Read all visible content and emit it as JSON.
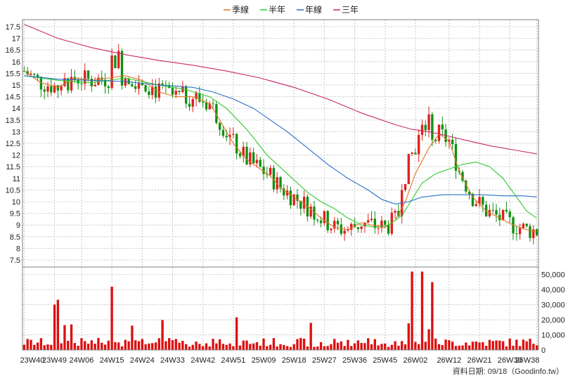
{
  "legend": [
    {
      "label": "季線",
      "color": "#e07828"
    },
    {
      "label": "半年",
      "color": "#2ecc2e"
    },
    {
      "label": "年線",
      "color": "#2870c8"
    },
    {
      "label": "三年",
      "color": "#c8286e"
    }
  ],
  "footer": "資料日期: 09/18（Goodinfo.tw）",
  "colors": {
    "up": "#e02020",
    "down": "#109010",
    "grid": "#c8c8c8",
    "volume": "#dd1010"
  },
  "chart_data": [
    {
      "type": "candlestick",
      "x_ticks": [
        "23W40",
        "23W49",
        "24W06",
        "24W15",
        "24W24",
        "24W33",
        "24W42",
        "24W51",
        "25W09",
        "25W18",
        "25W27",
        "25W36",
        "25W45",
        "26W02",
        "26W12",
        "26W21",
        "26W30",
        "26W38"
      ],
      "x_tick_index": [
        0,
        9,
        17,
        26,
        35,
        44,
        53,
        62,
        71,
        80,
        89,
        98,
        107,
        116,
        126,
        135,
        144,
        152
      ],
      "ylim": [
        7.2,
        17.8
      ],
      "y_ticks": [
        7.5,
        8,
        8.5,
        9,
        9.5,
        10,
        10.5,
        11,
        11.5,
        12,
        12.5,
        13,
        13.5,
        14,
        14.5,
        15,
        15.5,
        16,
        16.5,
        17,
        17.5
      ],
      "grid": true,
      "legend_position": "top-center",
      "ma_series": [
        {
          "name": "季線",
          "color": "#e07828",
          "points": [
            [
              0,
              15.6
            ],
            [
              5,
              15.1
            ],
            [
              10,
              14.9
            ],
            [
              15,
              15.3
            ],
            [
              20,
              15.2
            ],
            [
              25,
              15.3
            ],
            [
              30,
              15.4
            ],
            [
              35,
              15.2
            ],
            [
              40,
              14.7
            ],
            [
              45,
              14.5
            ],
            [
              50,
              14.5
            ],
            [
              55,
              14.2
            ],
            [
              58,
              13.5
            ],
            [
              62,
              12.5
            ],
            [
              66,
              11.8
            ],
            [
              70,
              11.4
            ],
            [
              73,
              11.1
            ],
            [
              76,
              10.6
            ],
            [
              80,
              10.2
            ],
            [
              84,
              9.8
            ],
            [
              88,
              9.3
            ],
            [
              92,
              8.9
            ],
            [
              96,
              8.8
            ],
            [
              100,
              9.1
            ],
            [
              103,
              9.0
            ],
            [
              107,
              8.9
            ],
            [
              110,
              9.2
            ],
            [
              113,
              10.0
            ],
            [
              116,
              11.2
            ],
            [
              120,
              12.3
            ],
            [
              123,
              12.9
            ],
            [
              126,
              12.6
            ],
            [
              129,
              11.3
            ],
            [
              133,
              10.2
            ],
            [
              137,
              9.6
            ],
            [
              141,
              9.3
            ],
            [
              145,
              9.0
            ],
            [
              149,
              8.8
            ],
            [
              152,
              8.75
            ]
          ]
        },
        {
          "name": "半年",
          "color": "#2ecc2e",
          "points": [
            [
              0,
              15.4
            ],
            [
              10,
              15.2
            ],
            [
              20,
              15.1
            ],
            [
              30,
              15.3
            ],
            [
              40,
              15.0
            ],
            [
              48,
              14.8
            ],
            [
              55,
              14.5
            ],
            [
              60,
              14.0
            ],
            [
              66,
              13.1
            ],
            [
              72,
              12.0
            ],
            [
              78,
              11.2
            ],
            [
              84,
              10.4
            ],
            [
              88,
              10.0
            ],
            [
              92,
              9.7
            ],
            [
              96,
              9.3
            ],
            [
              100,
              9.0
            ],
            [
              104,
              8.9
            ],
            [
              108,
              9.0
            ],
            [
              112,
              9.4
            ],
            [
              115,
              10.1
            ],
            [
              118,
              10.8
            ],
            [
              122,
              11.2
            ],
            [
              126,
              11.4
            ],
            [
              130,
              11.6
            ],
            [
              134,
              11.7
            ],
            [
              138,
              11.5
            ],
            [
              142,
              11.0
            ],
            [
              146,
              10.2
            ],
            [
              149,
              9.6
            ],
            [
              152,
              9.3
            ]
          ]
        },
        {
          "name": "年線",
          "color": "#2870c8",
          "points": [
            [
              0,
              15.4
            ],
            [
              10,
              15.25
            ],
            [
              20,
              15.2
            ],
            [
              30,
              15.15
            ],
            [
              40,
              15.0
            ],
            [
              50,
              14.9
            ],
            [
              56,
              14.7
            ],
            [
              62,
              14.4
            ],
            [
              68,
              14.0
            ],
            [
              73,
              13.5
            ],
            [
              78,
              13.0
            ],
            [
              84,
              12.3
            ],
            [
              90,
              11.6
            ],
            [
              96,
              11.0
            ],
            [
              102,
              10.5
            ],
            [
              106,
              10.1
            ],
            [
              110,
              9.9
            ],
            [
              114,
              10.0
            ],
            [
              118,
              10.2
            ],
            [
              124,
              10.3
            ],
            [
              130,
              10.3
            ],
            [
              136,
              10.3
            ],
            [
              142,
              10.25
            ],
            [
              148,
              10.25
            ],
            [
              152,
              10.2
            ]
          ]
        },
        {
          "name": "三年",
          "color": "#c8286e",
          "points": [
            [
              0,
              17.6
            ],
            [
              10,
              17.0
            ],
            [
              20,
              16.6
            ],
            [
              30,
              16.3
            ],
            [
              40,
              16.05
            ],
            [
              50,
              15.85
            ],
            [
              60,
              15.6
            ],
            [
              70,
              15.3
            ],
            [
              80,
              14.9
            ],
            [
              90,
              14.4
            ],
            [
              100,
              13.8
            ],
            [
              110,
              13.3
            ],
            [
              115,
              13.1
            ],
            [
              120,
              13.0
            ],
            [
              126,
              12.8
            ],
            [
              132,
              12.6
            ],
            [
              138,
              12.4
            ],
            [
              146,
              12.2
            ],
            [
              152,
              12.05
            ]
          ]
        }
      ]
    },
    {
      "type": "bar",
      "title": "",
      "ylim": [
        0,
        55000
      ],
      "y_ticks": [
        0,
        10000,
        20000,
        30000,
        40000,
        50000
      ],
      "y_tick_labels": [
        "0",
        "10,000",
        "20,000",
        "30,000",
        "40,000",
        "50,000"
      ]
    }
  ]
}
